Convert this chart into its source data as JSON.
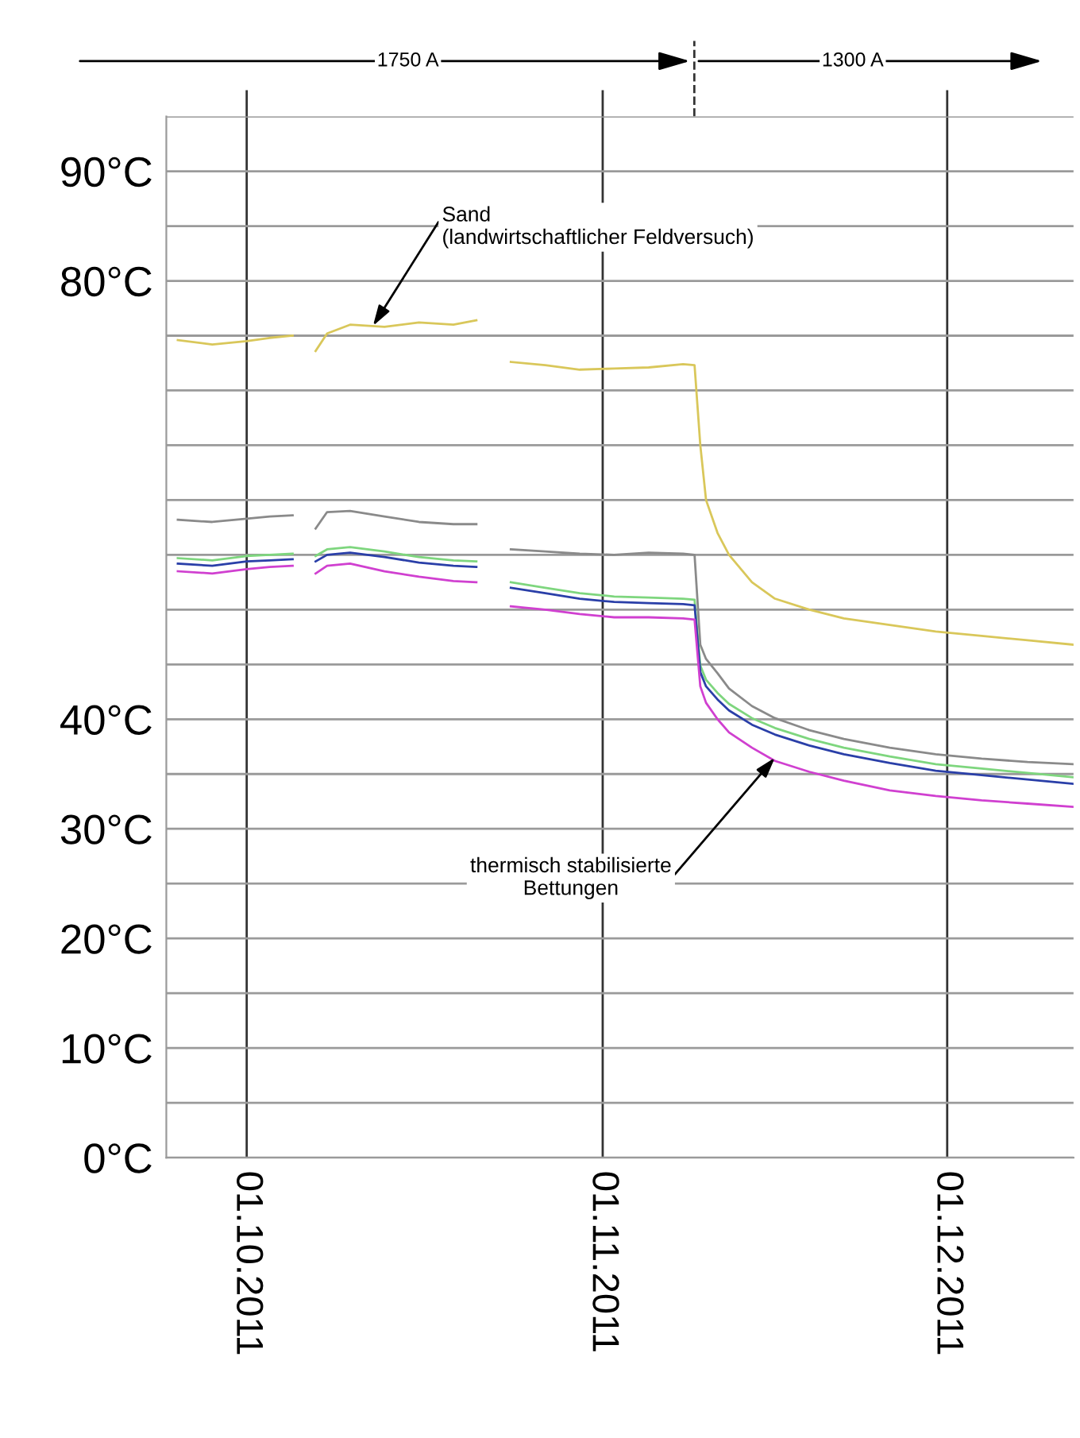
{
  "chart_data": {
    "type": "line",
    "x": [
      "2011-09-25",
      "2011-09-28",
      "2011-10-01",
      "2011-10-03",
      "2011-10-05",
      "2011-10-06",
      "2011-10-07",
      "2011-10-08",
      "2011-10-10",
      "2011-10-13",
      "2011-10-16",
      "2011-10-19",
      "2011-10-21",
      "2011-10-22",
      "2011-10-24",
      "2011-10-27",
      "2011-10-30",
      "2011-11-02",
      "2011-11-05",
      "2011-11-08",
      "2011-11-09",
      "2011-11-09T12:00",
      "2011-11-10",
      "2011-11-11",
      "2011-11-12",
      "2011-11-14",
      "2011-11-16",
      "2011-11-19",
      "2011-11-22",
      "2011-11-26",
      "2011-11-30",
      "2011-12-04",
      "2011-12-08",
      "2011-12-12"
    ],
    "series": [
      {
        "color": "#d9c75a",
        "values": [
          74.6,
          74.2,
          74.5,
          74.8,
          75.0,
          null,
          73.6,
          75.2,
          76.0,
          75.8,
          76.2,
          76.0,
          76.4,
          null,
          72.6,
          72.3,
          71.9,
          72.0,
          72.1,
          72.4,
          72.3,
          65,
          60,
          57,
          55,
          52.5,
          51,
          50,
          49.2,
          48.6,
          48.0,
          47.6,
          47.2,
          46.8
        ]
      },
      {
        "color": "#8a8a8a",
        "values": [
          58.2,
          58.0,
          58.3,
          58.5,
          58.6,
          null,
          57.4,
          58.9,
          59.0,
          58.5,
          58.0,
          57.8,
          57.8,
          null,
          55.5,
          55.3,
          55.1,
          55.0,
          55.2,
          55.1,
          55.0,
          46.8,
          45.5,
          44.2,
          42.8,
          41.2,
          40.1,
          39.0,
          38.2,
          37.4,
          36.8,
          36.4,
          36.1,
          35.9
        ]
      },
      {
        "color": "#7ed67e",
        "values": [
          54.7,
          54.5,
          54.9,
          55.0,
          55.1,
          null,
          54.9,
          55.5,
          55.7,
          55.3,
          54.8,
          54.5,
          54.4,
          null,
          52.5,
          52.0,
          51.5,
          51.2,
          51.1,
          51.0,
          50.9,
          44.9,
          43.6,
          42.4,
          41.4,
          40.1,
          39.2,
          38.2,
          37.4,
          36.6,
          35.9,
          35.5,
          35.1,
          34.7
        ]
      },
      {
        "color": "#2a3fa8",
        "values": [
          54.2,
          54.0,
          54.4,
          54.5,
          54.6,
          null,
          54.4,
          55.0,
          55.2,
          54.8,
          54.3,
          54.0,
          53.9,
          null,
          52.0,
          51.5,
          51.0,
          50.7,
          50.6,
          50.5,
          50.4,
          44.3,
          43.0,
          41.8,
          40.8,
          39.5,
          38.6,
          37.6,
          36.8,
          36.0,
          35.3,
          34.9,
          34.5,
          34.1
        ]
      },
      {
        "color": "#d040d0",
        "values": [
          53.5,
          53.3,
          53.7,
          53.9,
          54.0,
          null,
          53.3,
          54.0,
          54.2,
          53.5,
          53.0,
          52.6,
          52.5,
          null,
          50.3,
          50.0,
          49.6,
          49.3,
          49.3,
          49.2,
          49.1,
          43.0,
          41.5,
          40.0,
          38.8,
          37.4,
          36.2,
          35.2,
          34.4,
          33.5,
          33.0,
          32.6,
          32.3,
          32.0
        ]
      }
    ],
    "xlim": [
      "2011-09-24",
      "2011-12-12"
    ],
    "xticks": [
      {
        "value": "2011-10-01",
        "label": "01.10.2011"
      },
      {
        "value": "2011-11-01",
        "label": "01.11.2011"
      },
      {
        "value": "2011-12-01",
        "label": "01.12.2011"
      }
    ],
    "ylim": [
      0,
      95
    ],
    "yticks": [
      {
        "value": 0,
        "label": "0°C"
      },
      {
        "value": 5,
        "label": null
      },
      {
        "value": 10,
        "label": "10°C"
      },
      {
        "value": 15,
        "label": null
      },
      {
        "value": 20,
        "label": "20°C"
      },
      {
        "value": 25,
        "label": null
      },
      {
        "value": 30,
        "label": "30°C"
      },
      {
        "value": 35,
        "label": null
      },
      {
        "value": 40,
        "label": "40°C"
      },
      {
        "value": 45,
        "label": null
      },
      {
        "value": 50,
        "label": null
      },
      {
        "value": 55,
        "label": null
      },
      {
        "value": 60,
        "label": null
      },
      {
        "value": 65,
        "label": null
      },
      {
        "value": 70,
        "label": null
      },
      {
        "value": 75,
        "label": null
      },
      {
        "value": 80,
        "label": "80°C"
      },
      {
        "value": 85,
        "label": null
      },
      {
        "value": 90,
        "label": "90°C"
      },
      {
        "value": 95,
        "label": null
      }
    ],
    "grid": true,
    "annotations": [
      {
        "text": "Sand\n(landwirtschaftlicher Feldversuch)",
        "x": "2011-10-12",
        "y": 75.9
      },
      {
        "text": "thermisch stabilisierte\nBettungen",
        "x": "2011-11-16",
        "y": 36.5
      },
      "1750 A",
      "1300 A"
    ]
  }
}
